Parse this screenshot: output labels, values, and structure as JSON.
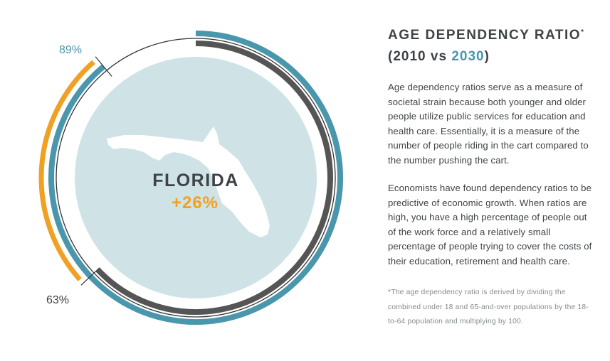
{
  "colors": {
    "blue": "#4a97ad",
    "dark_gray": "#555555",
    "orange": "#f0a124",
    "circle_fill": "#cfe3e7",
    "text_dark": "#3e4347",
    "footnote_gray": "#858a8e"
  },
  "chart_data": {
    "type": "radial-bar",
    "title": "AGE DEPENDENCY RATIO",
    "subtitle": "(2010 vs 2030)",
    "center_label": "FLORIDA",
    "change_label": "+26%",
    "series": [
      {
        "name": "2030",
        "value": 89,
        "label": "89%",
        "color": "#4a97ad"
      },
      {
        "name": "2010",
        "value": 63,
        "label": "63%",
        "color": "#555555"
      },
      {
        "name": "change",
        "value": 26,
        "label": "+26%",
        "color": "#f0a124"
      }
    ],
    "ring_max": 100
  },
  "heading": {
    "title": "AGE DEPENDENCY RATIO",
    "title_mark": "*",
    "open_paren": "(",
    "year_from": "2010",
    "vs": " vs ",
    "year_to": "2030",
    "close_paren": ")"
  },
  "body": {
    "paragraph1": "Age dependency ratios serve as a measure of societal strain because both younger and older people utilize public services for education and health care. Essentially, it is a measure of the number of people riding in the cart compared to the number pushing the cart.",
    "paragraph2": "Economists have found dependency ratios to be predictive of economic growth. When ratios are high, you have a high percentage of people out of the work force and a relatively small percentage of people trying to cover the costs of their education, retirement and health care.",
    "footnote": "*The age dependency ratio is derived by dividing the combined under 18 and 65-and-over populations by the 18-to-64 population and multiplying by 100."
  }
}
